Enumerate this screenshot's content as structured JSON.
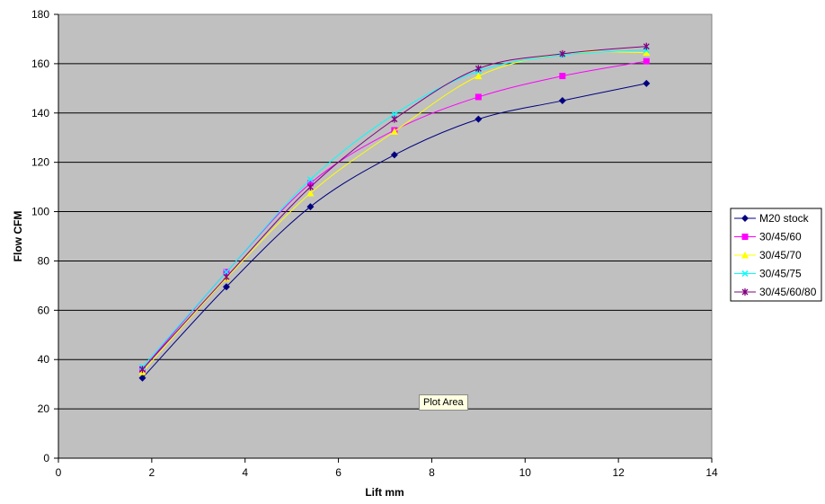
{
  "chart_data": {
    "type": "line",
    "title": "",
    "xlabel": "Lift mm",
    "ylabel": "Flow CFM",
    "xlim": [
      0,
      14
    ],
    "ylim": [
      0,
      180
    ],
    "x_ticks": [
      0,
      2,
      4,
      6,
      8,
      10,
      12,
      14
    ],
    "y_ticks": [
      0,
      20,
      40,
      60,
      80,
      100,
      120,
      140,
      160,
      180
    ],
    "grid": "horizontal",
    "plot_background": "#c0c0c0",
    "legend_position": "right",
    "x": [
      1.8,
      3.6,
      5.4,
      7.2,
      9.0,
      10.8,
      12.6
    ],
    "series": [
      {
        "name": "M20 stock",
        "color": "#000080",
        "marker": "diamond",
        "values": [
          32.5,
          69.5,
          102,
          123,
          137.5,
          145,
          152
        ]
      },
      {
        "name": "30/45/60",
        "color": "#ff00ff",
        "marker": "square",
        "values": [
          36,
          75.5,
          111.5,
          133,
          146.5,
          155,
          161
        ]
      },
      {
        "name": "30/45/70",
        "color": "#ffff00",
        "marker": "triangle",
        "values": [
          35,
          73,
          107.5,
          132.5,
          155,
          164,
          164.5
        ]
      },
      {
        "name": "30/45/75",
        "color": "#00ffff",
        "marker": "x",
        "values": [
          37,
          75.5,
          113,
          139.5,
          157,
          163.5,
          165.5
        ]
      },
      {
        "name": "30/45/60/80",
        "color": "#800080",
        "marker": "star",
        "values": [
          36,
          73.5,
          110,
          137.5,
          158,
          164,
          167
        ]
      }
    ]
  },
  "tooltip": "Plot Area"
}
